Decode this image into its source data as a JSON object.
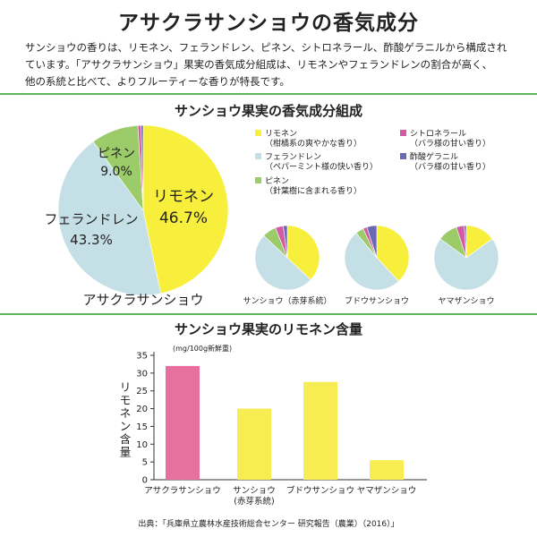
{
  "title": "アサクラサンショウの香気成分",
  "intro_lines": [
    "サンショウの香りは、リモネン、フェランドレン、ピネン、シトロネラール、酢酸ゲラニルから構成され",
    "ています。「アサクラサンショウ」果実の香気成分組成は、リモネンやフェランドレンの割合が高く、",
    "他の系統と比べて、よりフルーティーな香りが特長です。"
  ],
  "colors": {
    "rule": "#5fb75c",
    "limonene": "#f7ef3c",
    "phellandrene": "#c5dfe6",
    "pinene": "#9ccb6a",
    "citronellal": "#d35ba4",
    "geranyl_acetate": "#6a6ab4",
    "bar_pink": "#e8709f",
    "bar_yellow": "#f7ec52"
  },
  "pie_section": {
    "title": "サンショウ果実の香気成分組成",
    "legend": [
      {
        "key": "limonene",
        "name": "リモネン",
        "desc": "（柑橘系の爽やかな香り）"
      },
      {
        "key": "phellandrene",
        "name": "フェランドレン",
        "desc": "（ペパーミント様の快い香り）"
      },
      {
        "key": "pinene",
        "name": "ピネン",
        "desc": "（針葉樹に含まれる香り）"
      },
      {
        "key": "citronellal",
        "name": "シトロネラール",
        "desc": "（バラ様の甘い香り）"
      },
      {
        "key": "geranyl_acetate",
        "name": "酢酸ゲラニル",
        "desc": "（バラ様の甘い香り）"
      }
    ]
  },
  "bar_section": {
    "title": "サンショウ果実のリモネン含量"
  },
  "source": "出典：「兵庫県立農林水産技術総合センター 研究報告（農業）（2016）」",
  "chart_data": [
    {
      "type": "pie",
      "title": "アサクラサンショウ",
      "labels": [
        "リモネン",
        "フェランドレン",
        "ピネン",
        "シトロネラール",
        "酢酸ゲラニル"
      ],
      "values": [
        46.7,
        43.3,
        9.0,
        0.6,
        0.4
      ],
      "value_labels": [
        "46.7%",
        "43.3%",
        "9.0%",
        "",
        ""
      ]
    },
    {
      "type": "pie",
      "title": "サンショウ（赤芽系統）",
      "labels": [
        "リモネン",
        "フェランドレン",
        "ピネン",
        "シトロネラール",
        "酢酸ゲラニル"
      ],
      "values": [
        37,
        50,
        7,
        4,
        2
      ]
    },
    {
      "type": "pie",
      "title": "ブドウサンショウ",
      "labels": [
        "リモネン",
        "フェランドレン",
        "ピネン",
        "シトロネラール",
        "酢酸ゲラニル"
      ],
      "values": [
        38,
        51,
        4,
        2,
        5
      ]
    },
    {
      "type": "pie",
      "title": "ヤマザンショウ",
      "labels": [
        "リモネン",
        "フェランドレン",
        "ピネン",
        "シトロネラール",
        "酢酸ゲラニル"
      ],
      "values": [
        15,
        70,
        10,
        4,
        1
      ]
    },
    {
      "type": "bar",
      "categories": [
        "アサクラサンショウ",
        "サンショウ\n(赤芽系統)",
        "ブドウサンショウ",
        "ヤマザンショウ"
      ],
      "values": [
        32,
        20,
        27.5,
        5.5
      ],
      "ylabel": "リモネン含量",
      "unit": "(mg/100g新鮮重)",
      "ylim": [
        0,
        35
      ],
      "yticks": [
        0,
        5,
        10,
        15,
        20,
        25,
        30,
        35
      ]
    }
  ]
}
